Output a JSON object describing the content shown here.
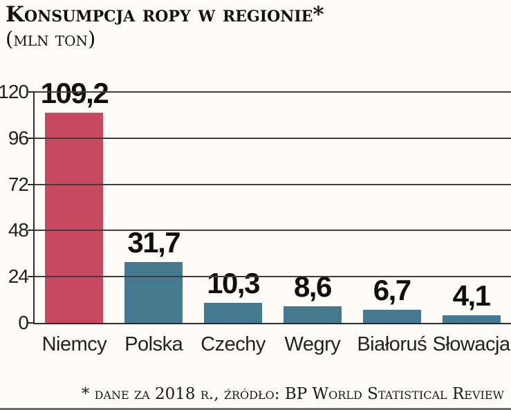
{
  "page": {
    "title": "Konsumpcja ropy w regionie*",
    "subtitle": "(mln ton)",
    "footnote": "* dane za 2018 r., źródło: BP World Statistical Review"
  },
  "chart_data": {
    "type": "bar",
    "title": "Konsumpcja ropy w regionie*",
    "subtitle": "(mln ton)",
    "unit": "mln ton",
    "categories": [
      "Niemcy",
      "Polska",
      "Czechy",
      "Wegry",
      "Białoruś",
      "Słowacja"
    ],
    "values": [
      109.2,
      31.7,
      10.3,
      8.6,
      6.7,
      4.1
    ],
    "value_labels": [
      "109,2",
      "31,7",
      "10,3",
      "8,6",
      "6,7",
      "4,1"
    ],
    "yticks": [
      0,
      24,
      48,
      72,
      96,
      120
    ],
    "ylim": [
      0,
      120
    ],
    "grid": "horizontal-full-width",
    "legend": "none",
    "bar_colors": [
      "#c7495f",
      "#44798f",
      "#44798f",
      "#44798f",
      "#44798f",
      "#44798f"
    ],
    "highlight_color": "#c7495f",
    "default_color": "#44798f",
    "footnote": "* dane za 2018 r., źródło: BP World Statistical Review"
  }
}
